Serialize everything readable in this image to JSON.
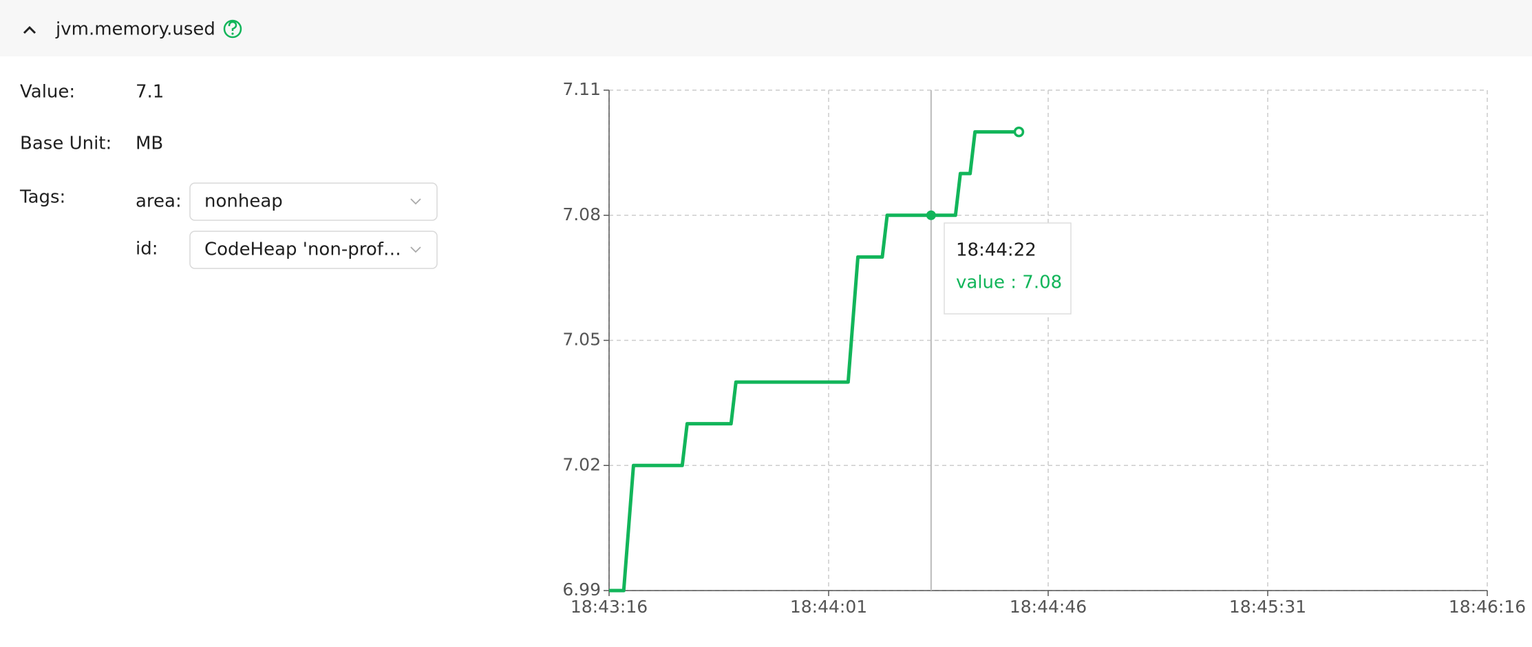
{
  "header": {
    "title": "jvm.memory.used"
  },
  "fields": {
    "value_label": "Value:",
    "value": "7.1",
    "unit_label": "Base Unit:",
    "unit": "MB",
    "tags_label": "Tags:",
    "tags": [
      {
        "key": "area:",
        "value": "nonheap"
      },
      {
        "key": "id:",
        "value": "CodeHeap 'non-prof…"
      }
    ]
  },
  "chart_data": {
    "type": "line",
    "x": [
      "18:43:16",
      "18:43:19",
      "18:43:21",
      "18:43:31",
      "18:43:32",
      "18:43:41",
      "18:43:42",
      "18:44:05",
      "18:44:07",
      "18:44:12",
      "18:44:13",
      "18:44:22",
      "18:44:27",
      "18:44:28",
      "18:44:30",
      "18:44:31",
      "18:44:40"
    ],
    "series": [
      {
        "color": "#12b55a",
        "values": [
          6.99,
          6.99,
          7.02,
          7.02,
          7.03,
          7.03,
          7.04,
          7.04,
          7.07,
          7.07,
          7.08,
          7.08,
          7.08,
          7.09,
          7.09,
          7.1,
          7.1
        ]
      }
    ],
    "xlim": [
      "18:43:16",
      "18:46:16"
    ],
    "xticks": [
      "18:43:16",
      "18:44:01",
      "18:44:46",
      "18:45:31",
      "18:46:16"
    ],
    "ylim": [
      6.99,
      7.11
    ],
    "yticks": [
      6.99,
      7.02,
      7.05,
      7.08,
      7.11
    ],
    "grid": true,
    "tooltip": {
      "x": "18:44:22",
      "label": "value : 7.08",
      "index": 11
    }
  }
}
